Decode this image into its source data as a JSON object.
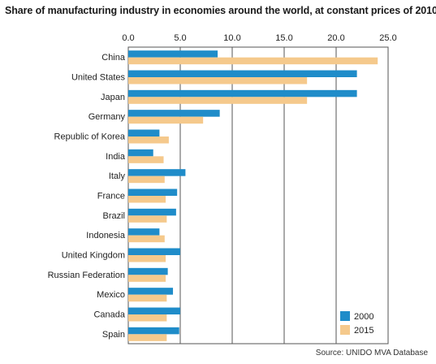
{
  "chart_data": {
    "type": "bar",
    "orientation": "horizontal",
    "title": "Share of manufacturing industry in economies around the world, at constant prices of 2010",
    "categories": [
      "China",
      "United States",
      "Japan",
      "Germany",
      "Republic of Korea",
      "India",
      "Italy",
      "France",
      "Brazil",
      "Indonesia",
      "United Kingdom",
      "Russian Federation",
      "Mexico",
      "Canada",
      "Spain"
    ],
    "series": [
      {
        "name": "2000",
        "color": "#1f8cc9",
        "values": [
          8.6,
          22.0,
          22.0,
          8.8,
          3.0,
          2.4,
          5.5,
          4.7,
          4.6,
          3.0,
          5.0,
          3.8,
          4.3,
          5.0,
          4.9
        ]
      },
      {
        "name": "2015",
        "color": "#f5c98c",
        "values": [
          24.0,
          17.2,
          17.2,
          7.2,
          3.9,
          3.4,
          3.5,
          3.6,
          3.7,
          3.5,
          3.6,
          3.6,
          3.7,
          3.7,
          3.7
        ]
      }
    ],
    "xlim": [
      0,
      25
    ],
    "xticks": [
      "0.0",
      "5.0",
      "10.0",
      "15.0",
      "20.0",
      "25.0"
    ],
    "xtick_values": [
      0,
      5,
      10,
      15,
      20,
      25
    ],
    "xaxis_position": "top",
    "grid": true,
    "legend_position": "bottom-right",
    "source": "Source: UNIDO MVA Database"
  }
}
